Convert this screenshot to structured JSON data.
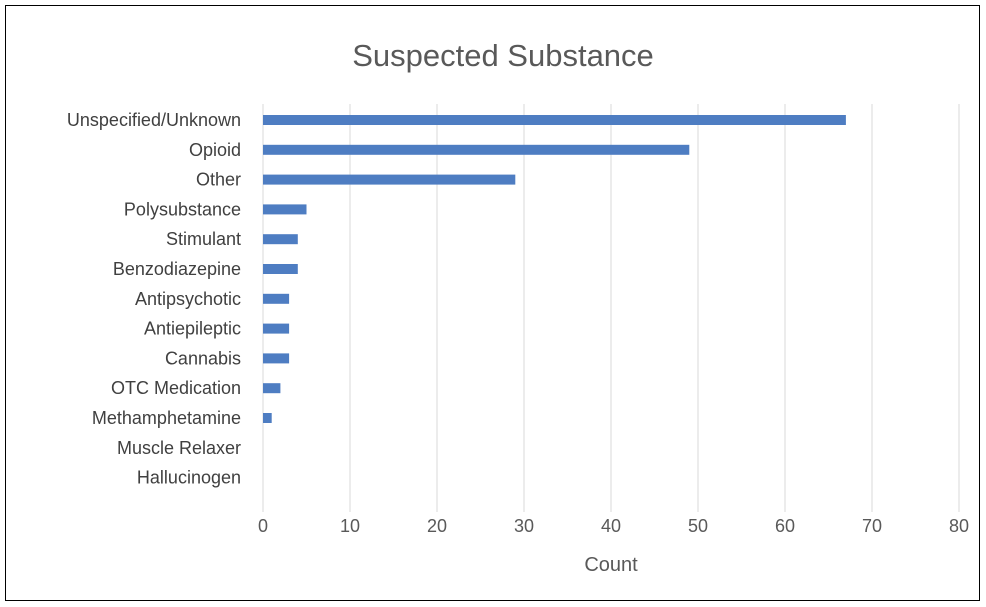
{
  "chart_data": {
    "type": "bar",
    "orientation": "horizontal",
    "title": "Suspected Substance",
    "xlabel": "Count",
    "ylabel": "",
    "xlim": [
      0,
      80
    ],
    "x_ticks": [
      0,
      10,
      20,
      30,
      40,
      50,
      60,
      70,
      80
    ],
    "grid": true,
    "legend": "none",
    "color": "#4E7DC2",
    "categories": [
      "Unspecified/Unknown",
      "Opioid",
      "Other",
      "Polysubstance",
      "Stimulant",
      "Benzodiazepine",
      "Antipsychotic",
      "Antiepileptic",
      "Cannabis",
      "OTC Medication",
      "Methamphetamine",
      "Muscle Relaxer",
      "Hallucinogen"
    ],
    "values": [
      67,
      49,
      29,
      5,
      4,
      4,
      3,
      3,
      3,
      2,
      1,
      0,
      0
    ]
  }
}
